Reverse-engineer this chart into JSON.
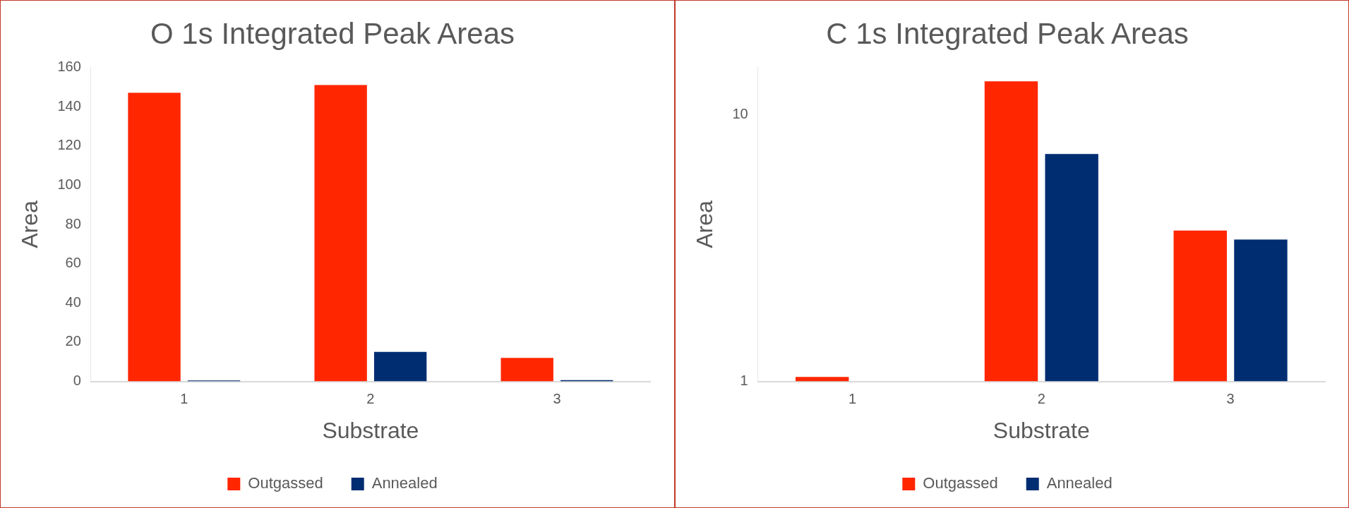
{
  "chart_data": [
    {
      "type": "bar",
      "title": "O 1s Integrated Peak Areas",
      "xlabel": "Substrate",
      "ylabel": "Area",
      "categories": [
        "1",
        "2",
        "3"
      ],
      "series": [
        {
          "name": "Outgassed",
          "color": "#ff2600",
          "values": [
            147,
            151,
            12
          ]
        },
        {
          "name": "Annealed",
          "color": "#002d72",
          "values": [
            0.5,
            15,
            0.7
          ]
        }
      ],
      "ylim": [
        0,
        160
      ],
      "yticks": [
        0,
        20,
        40,
        60,
        80,
        100,
        120,
        140,
        160
      ],
      "legend": "bottom"
    },
    {
      "type": "bar",
      "title": "C 1s Integrated Peak Areas",
      "xlabel": "Substrate",
      "ylabel": "Area",
      "categories": [
        "1",
        "2",
        "3"
      ],
      "series": [
        {
          "name": "Outgassed",
          "color": "#ff2600",
          "values": [
            1.04,
            13.3,
            3.67
          ]
        },
        {
          "name": "Annealed",
          "color": "#002d72",
          "values": [
            null,
            7.1,
            3.4
          ]
        }
      ],
      "ylim": [
        1,
        15
      ],
      "yticks": [
        1,
        10
      ],
      "log": true,
      "legend": "bottom"
    }
  ]
}
